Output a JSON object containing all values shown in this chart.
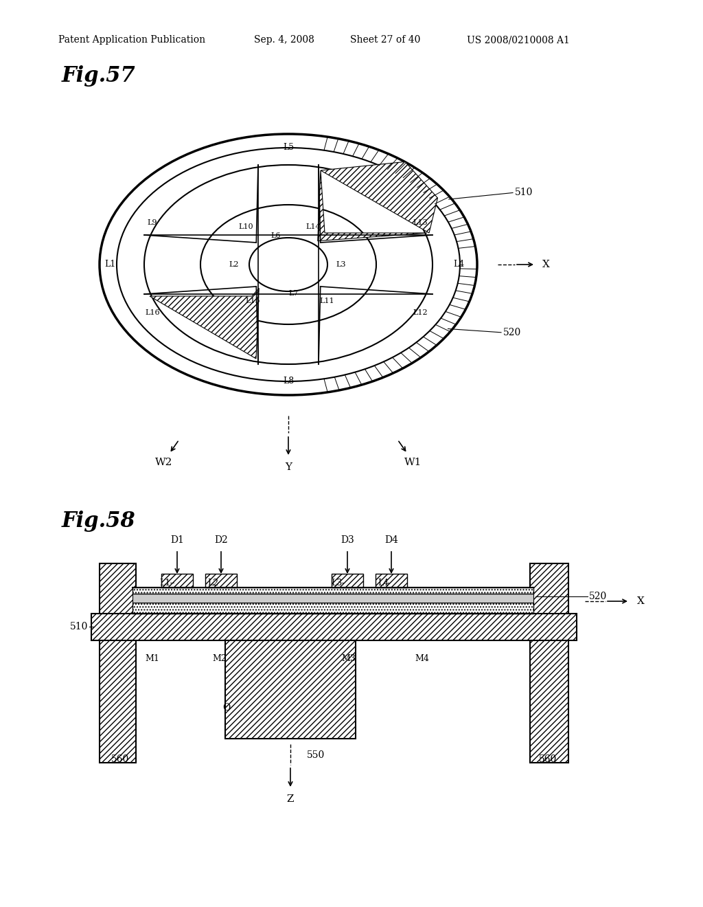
{
  "header_text": "Patent Application Publication",
  "header_date": "Sep. 4, 2008",
  "header_sheet": "Sheet 27 of 40",
  "header_patent": "US 2008/0210008 A1",
  "fig57_title": "Fig.57",
  "fig58_title": "Fig.58",
  "background_color": "#ffffff",
  "line_color": "#000000"
}
